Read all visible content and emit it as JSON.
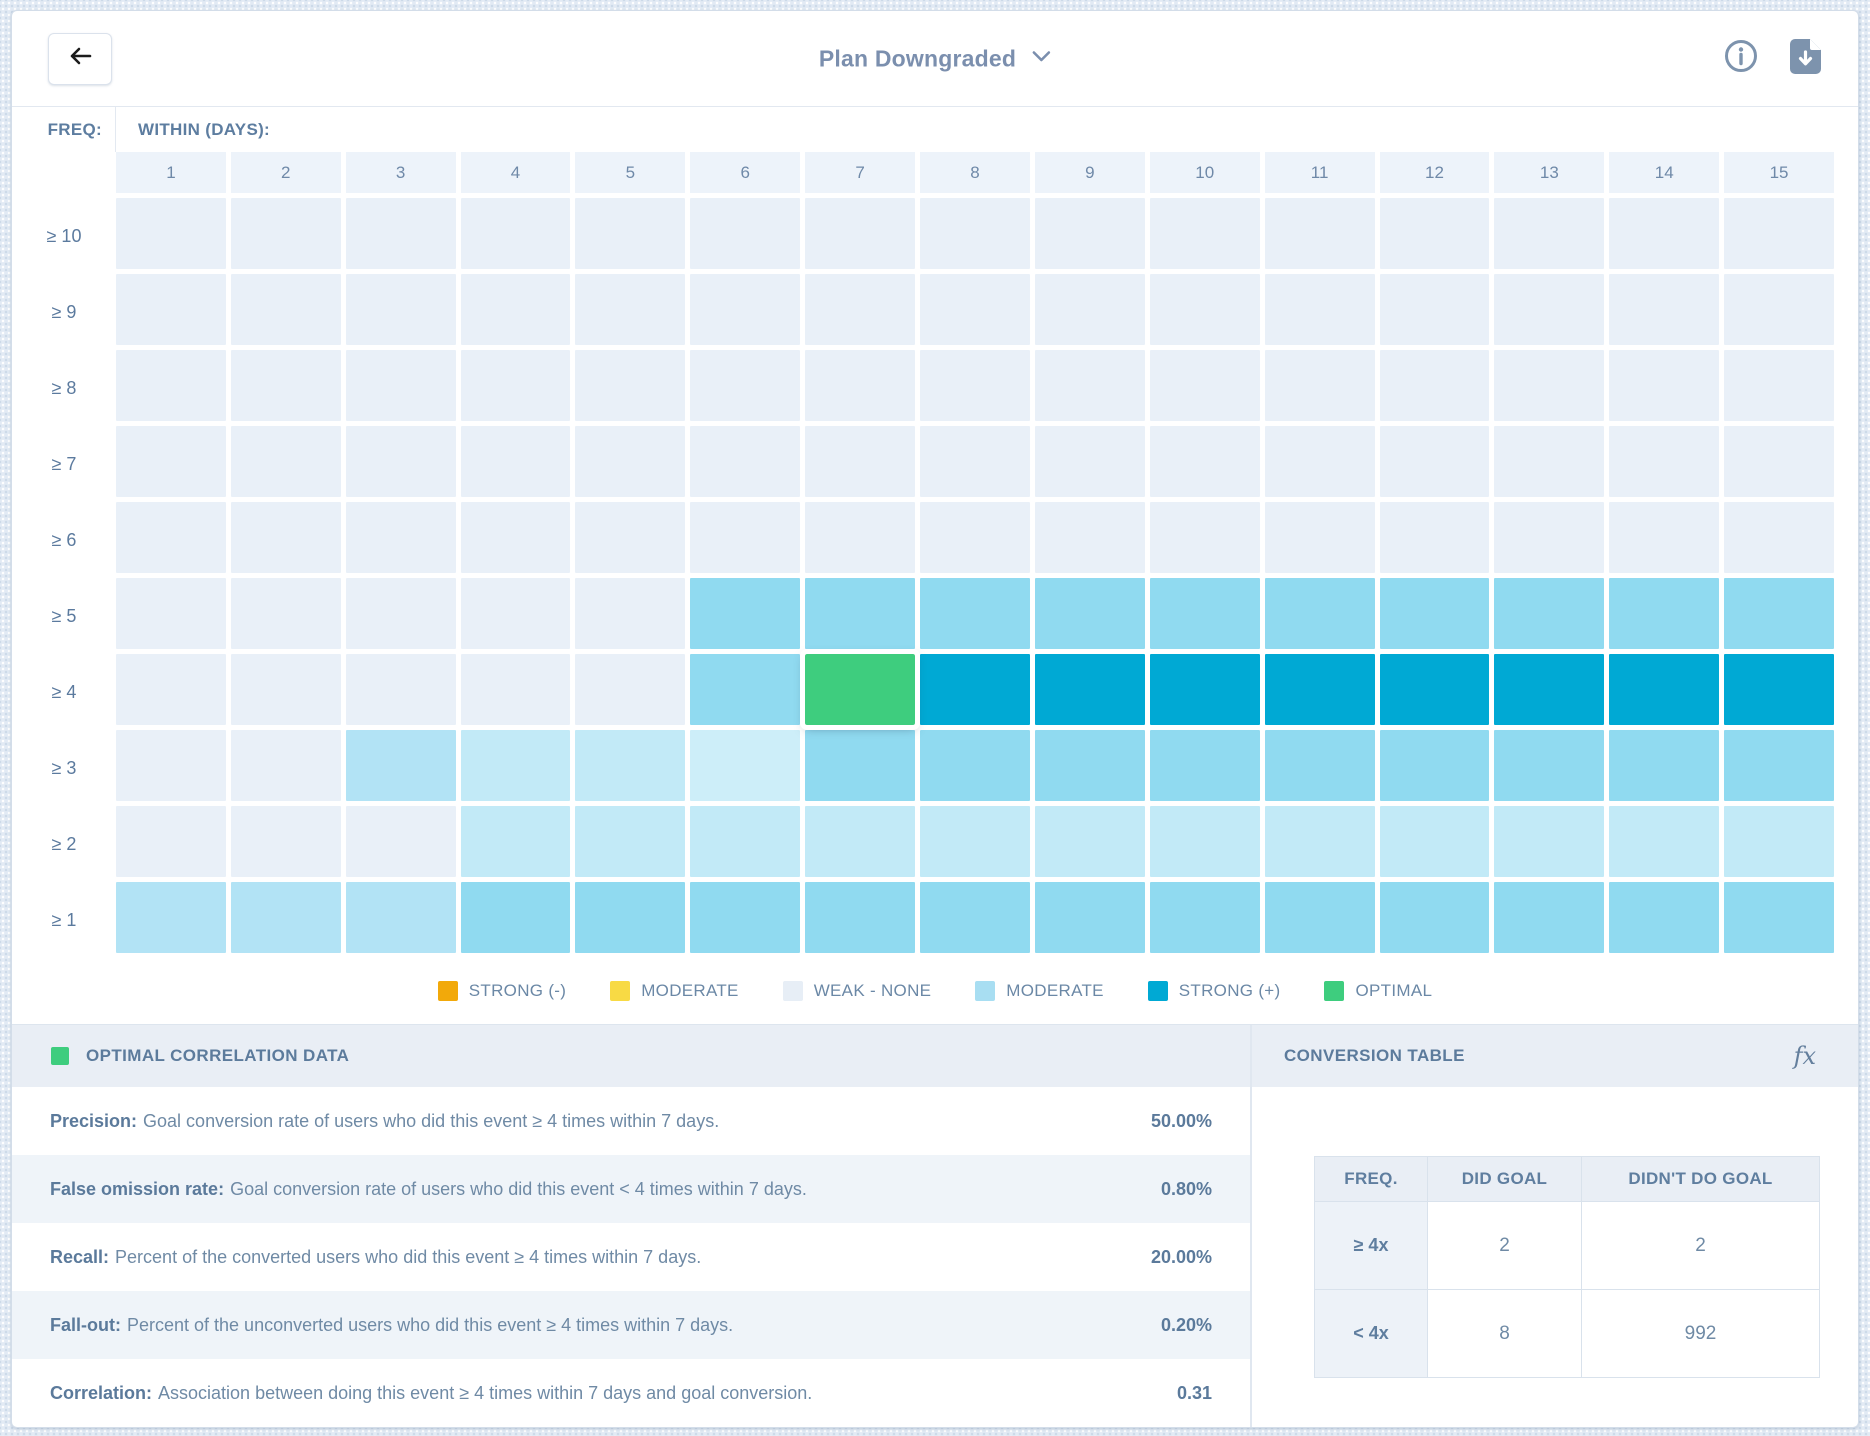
{
  "topbar": {
    "title": "Plan Downgraded"
  },
  "heatmap": {
    "freq_label": "FREQ:",
    "within_label": "WITHIN (DAYS):"
  },
  "chart_data": {
    "type": "heatmap",
    "x_label": "WITHIN (DAYS):",
    "y_label": "FREQ:",
    "x": [
      "1",
      "2",
      "3",
      "4",
      "5",
      "6",
      "7",
      "8",
      "9",
      "10",
      "11",
      "12",
      "13",
      "14",
      "15"
    ],
    "y": [
      "≥ 10",
      "≥ 9",
      "≥ 8",
      "≥ 7",
      "≥ 6",
      "≥ 5",
      "≥ 4",
      "≥ 3",
      "≥ 2",
      "≥ 1"
    ],
    "palette": {
      "w": {
        "hex": "#e9f0f8",
        "meaning": "weak - none"
      },
      "l1": {
        "hex": "#cdeef9",
        "meaning": "weak-moderate lightest"
      },
      "l2": {
        "hex": "#c2eaf7",
        "meaning": "weak-moderate light"
      },
      "l3": {
        "hex": "#b2e3f5",
        "meaning": "weak-moderate"
      },
      "m": {
        "hex": "#90daf0",
        "meaning": "moderate (+)"
      },
      "s": {
        "hex": "#00a9d4",
        "meaning": "strong (+)"
      },
      "o": {
        "hex": "#3ecd7e",
        "meaning": "optimal"
      }
    },
    "rows": [
      [
        "w",
        "w",
        "w",
        "w",
        "w",
        "w",
        "w",
        "w",
        "w",
        "w",
        "w",
        "w",
        "w",
        "w",
        "w"
      ],
      [
        "w",
        "w",
        "w",
        "w",
        "w",
        "w",
        "w",
        "w",
        "w",
        "w",
        "w",
        "w",
        "w",
        "w",
        "w"
      ],
      [
        "w",
        "w",
        "w",
        "w",
        "w",
        "w",
        "w",
        "w",
        "w",
        "w",
        "w",
        "w",
        "w",
        "w",
        "w"
      ],
      [
        "w",
        "w",
        "w",
        "w",
        "w",
        "w",
        "w",
        "w",
        "w",
        "w",
        "w",
        "w",
        "w",
        "w",
        "w"
      ],
      [
        "w",
        "w",
        "w",
        "w",
        "w",
        "w",
        "w",
        "w",
        "w",
        "w",
        "w",
        "w",
        "w",
        "w",
        "w"
      ],
      [
        "w",
        "w",
        "w",
        "w",
        "w",
        "m",
        "m",
        "m",
        "m",
        "m",
        "m",
        "m",
        "m",
        "m",
        "m"
      ],
      [
        "w",
        "w",
        "w",
        "w",
        "w",
        "m",
        "o",
        "s",
        "s",
        "s",
        "s",
        "s",
        "s",
        "s",
        "s"
      ],
      [
        "w",
        "w",
        "l3",
        "l2",
        "l2",
        "l1",
        "m",
        "m",
        "m",
        "m",
        "m",
        "m",
        "m",
        "m",
        "m"
      ],
      [
        "w",
        "w",
        "w",
        "l2",
        "l2",
        "l2",
        "l2",
        "l2",
        "l2",
        "l2",
        "l2",
        "l2",
        "l2",
        "l2",
        "l2"
      ],
      [
        "l3",
        "l3",
        "l3",
        "m",
        "m",
        "m",
        "m",
        "m",
        "m",
        "m",
        "m",
        "m",
        "m",
        "m",
        "m"
      ]
    ],
    "optimal_cell": {
      "row": "≥ 4",
      "column": "7"
    }
  },
  "legend": {
    "items": [
      {
        "label": "STRONG (-)",
        "color": "#f2a90a",
        "textured": false
      },
      {
        "label": "MODERATE",
        "color": "#f8da44",
        "textured": false
      },
      {
        "label": "WEAK - NONE",
        "color": "#e7eef6",
        "textured": false
      },
      {
        "label": "MODERATE",
        "color": "#a8def2",
        "textured": true
      },
      {
        "label": "STRONG (+)",
        "color": "#00a9d4",
        "textured": false
      },
      {
        "label": "OPTIMAL",
        "color": "#3ecd7e",
        "textured": false
      }
    ]
  },
  "optimal_panel": {
    "title": "OPTIMAL CORRELATION DATA",
    "rows": [
      {
        "term": "Precision:",
        "description": "Goal conversion rate of users who did this event ≥ 4 times within 7 days.",
        "value": "50.00%"
      },
      {
        "term": "False omission rate:",
        "description": "Goal conversion rate of users who did this event < 4 times within 7 days.",
        "value": "0.80%"
      },
      {
        "term": "Recall:",
        "description": "Percent of the converted users who did this event ≥ 4 times within 7 days.",
        "value": "20.00%"
      },
      {
        "term": "Fall-out:",
        "description": "Percent of the unconverted users who did this event ≥ 4 times within 7 days.",
        "value": "0.20%"
      },
      {
        "term": "Correlation:",
        "description": "Association between doing this event ≥ 4 times within 7 days and goal conversion.",
        "value": "0.31"
      }
    ]
  },
  "conversion_panel": {
    "title": "CONVERSION TABLE",
    "fx_label": "fx",
    "headers": [
      "FREQ.",
      "DID GOAL",
      "DIDN'T DO GOAL"
    ],
    "rows": [
      {
        "freq": "≥ 4x",
        "did_goal": "2",
        "didnt_do_goal": "2"
      },
      {
        "freq": "< 4x",
        "did_goal": "8",
        "didnt_do_goal": "992"
      }
    ]
  }
}
